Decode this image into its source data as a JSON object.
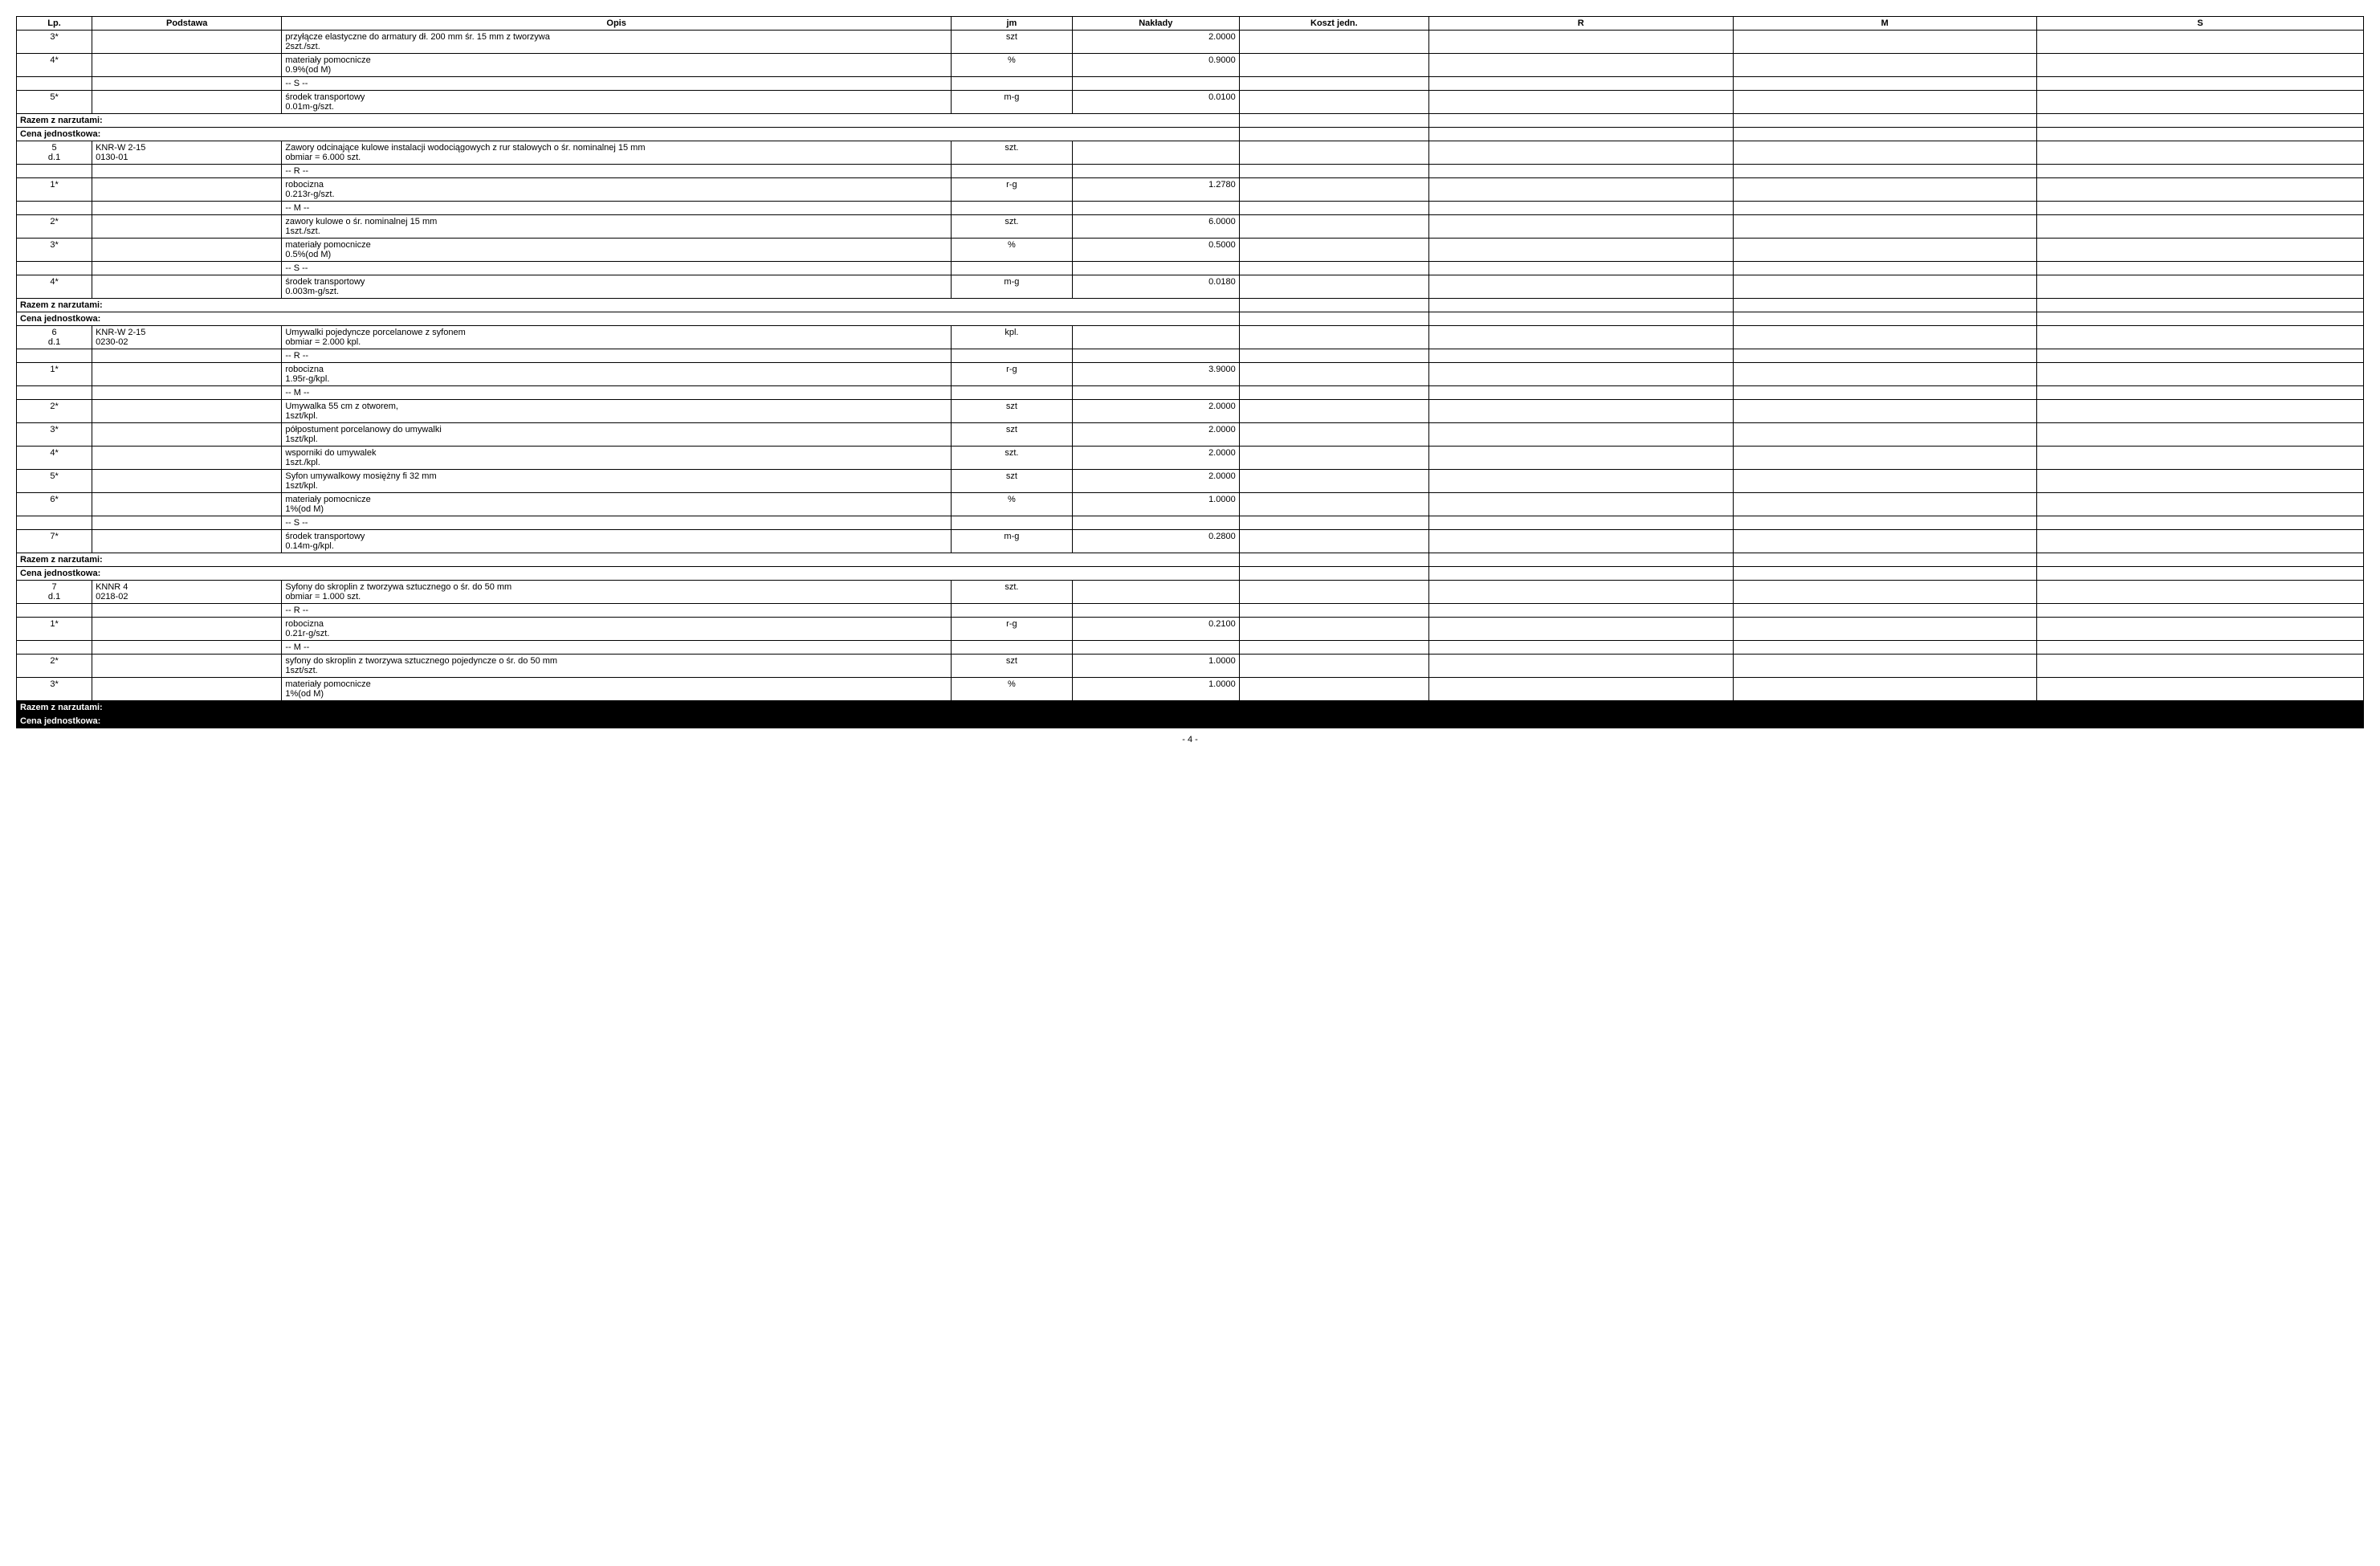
{
  "columns": {
    "lp": "Lp.",
    "podstawa": "Podstawa",
    "opis": "Opis",
    "jm": "jm",
    "naklady": "Nakłady",
    "koszt": "Koszt jedn.",
    "r": "R",
    "m": "M",
    "s": "S"
  },
  "summary": {
    "razem": "Razem z narzutami:",
    "cena": "Cena jednostkowa:"
  },
  "pageNumber": "- 4 -",
  "rows": [
    {
      "lp": "3*",
      "opis": "przyłącze elastyczne do armatury dł. 200 mm śr. 15 mm z tworzywa\n2szt./szt.",
      "jm": "szt",
      "naklady": "2.0000"
    },
    {
      "lp": "4*",
      "opis": "materiały pomocnicze\n0.9%(od M)",
      "jm": "%",
      "naklady": "0.9000"
    },
    {
      "lp": "",
      "opis": "-- S --",
      "jm": "",
      "naklady": ""
    },
    {
      "lp": "5*",
      "opis": "środek transportowy\n0.01m-g/szt.",
      "jm": "m-g",
      "naklady": "0.0100"
    },
    {
      "type": "summary"
    },
    {
      "lp": "5\nd.1",
      "podstawa": "KNR-W 2-15\n0130-01",
      "opis": "Zawory odcinające kulowe instalacji wodociągowych z rur stalowych o śr. nominalnej 15 mm\nobmiar = 6.000 szt.",
      "jm": "szt.",
      "naklady": ""
    },
    {
      "lp": "",
      "opis": "-- R --",
      "jm": "",
      "naklady": ""
    },
    {
      "lp": "1*",
      "opis": "robocizna\n0.213r-g/szt.",
      "jm": "r-g",
      "naklady": "1.2780"
    },
    {
      "lp": "",
      "opis": "-- M --",
      "jm": "",
      "naklady": ""
    },
    {
      "lp": "2*",
      "opis": "zawory kulowe o śr. nominalnej 15 mm\n1szt./szt.",
      "jm": "szt.",
      "naklady": "6.0000"
    },
    {
      "lp": "3*",
      "opis": "materiały pomocnicze\n0.5%(od M)",
      "jm": "%",
      "naklady": "0.5000"
    },
    {
      "lp": "",
      "opis": "-- S --",
      "jm": "",
      "naklady": ""
    },
    {
      "lp": "4*",
      "opis": "środek transportowy\n0.003m-g/szt.",
      "jm": "m-g",
      "naklady": "0.0180"
    },
    {
      "type": "summary"
    },
    {
      "lp": "6\nd.1",
      "podstawa": "KNR-W 2-15\n0230-02",
      "opis": "Umywalki pojedyncze porcelanowe z syfonem\nobmiar = 2.000 kpl.",
      "jm": "kpl.",
      "naklady": ""
    },
    {
      "lp": "",
      "opis": "-- R --",
      "jm": "",
      "naklady": ""
    },
    {
      "lp": "1*",
      "opis": "robocizna\n1.95r-g/kpl.",
      "jm": "r-g",
      "naklady": "3.9000"
    },
    {
      "lp": "",
      "opis": "-- M --",
      "jm": "",
      "naklady": ""
    },
    {
      "lp": "2*",
      "opis": "Umywalka 55 cm z otworem,\n1szt/kpl.",
      "jm": "szt",
      "naklady": "2.0000"
    },
    {
      "lp": "3*",
      "opis": "półpostument porcelanowy do umywalki\n1szt/kpl.",
      "jm": "szt",
      "naklady": "2.0000"
    },
    {
      "lp": "4*",
      "opis": "wsporniki do umywalek\n1szt./kpl.",
      "jm": "szt.",
      "naklady": "2.0000"
    },
    {
      "lp": "5*",
      "opis": "Syfon umywalkowy mosiężny fi 32 mm\n1szt/kpl.",
      "jm": "szt",
      "naklady": "2.0000"
    },
    {
      "lp": "6*",
      "opis": "materiały pomocnicze\n1%(od M)",
      "jm": "%",
      "naklady": "1.0000"
    },
    {
      "lp": "",
      "opis": "-- S --",
      "jm": "",
      "naklady": ""
    },
    {
      "lp": "7*",
      "opis": "środek transportowy\n0.14m-g/kpl.",
      "jm": "m-g",
      "naklady": "0.2800"
    },
    {
      "type": "summary"
    },
    {
      "lp": "7\nd.1",
      "podstawa": "KNNR 4\n0218-02",
      "opis": "Syfony do skroplin z tworzywa sztucznego o śr. do 50 mm\nobmiar = 1.000 szt.",
      "jm": "szt.",
      "naklady": ""
    },
    {
      "lp": "",
      "opis": "-- R --",
      "jm": "",
      "naklady": ""
    },
    {
      "lp": "1*",
      "opis": "robocizna\n0.21r-g/szt.",
      "jm": "r-g",
      "naklady": "0.2100"
    },
    {
      "lp": "",
      "opis": "-- M --",
      "jm": "",
      "naklady": ""
    },
    {
      "lp": "2*",
      "opis": "syfony do skroplin z tworzywa sztucznego pojedyncze o śr. do 50 mm\n1szt/szt.",
      "jm": "szt",
      "naklady": "1.0000"
    },
    {
      "lp": "3*",
      "opis": "materiały pomocnicze\n1%(od M)",
      "jm": "%",
      "naklady": "1.0000"
    },
    {
      "type": "summary-inverted"
    }
  ]
}
